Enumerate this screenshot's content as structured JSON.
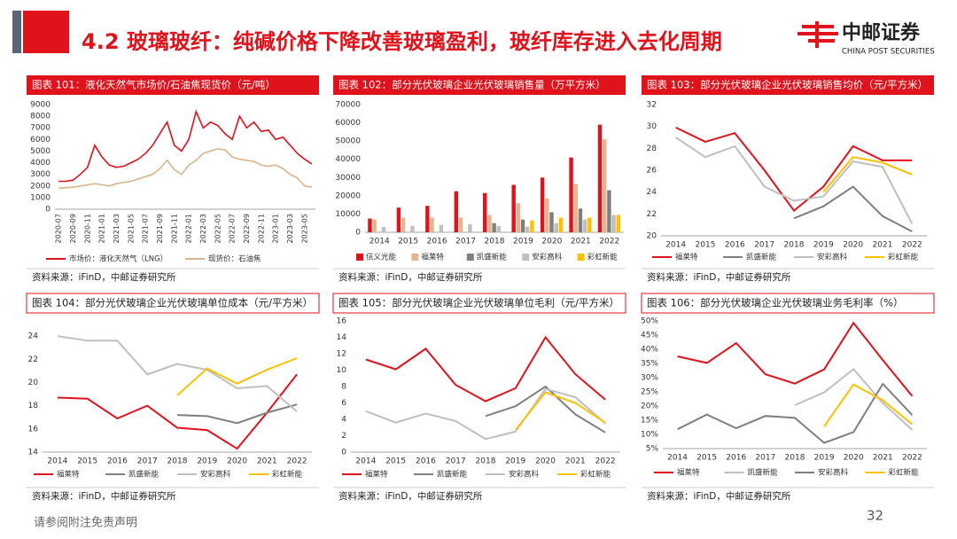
{
  "header": {
    "title": "4.2 玻璃玻纤：纯碱价格下降改善玻璃盈利，玻纤库存进入去化周期",
    "logo": "中邮证券",
    "logo_en": "CHINA POST SECURITIES"
  },
  "footer": {
    "disclaimer": "请参阅附注免责声明",
    "page": "32"
  },
  "chart_data": [
    {
      "type": "line",
      "title": "图表 101：液化天然气市场价/石油焦现货价（元/吨）",
      "source": "资料来源：iFinD，中邮证券研究所",
      "categories": [
        "2020-07",
        null,
        "2020-09",
        null,
        "2020-11",
        null,
        "2021-01",
        null,
        "2021-03",
        null,
        "2021-05",
        null,
        "2021-07",
        null,
        "2021-09",
        null,
        "2021-11",
        null,
        "2022-01",
        null,
        "2022-03",
        null,
        "2022-05",
        null,
        "2022-07",
        null,
        "2022-09",
        null,
        "2022-11",
        null,
        "2023-01",
        null,
        "2023-03",
        null,
        "2023-05",
        null
      ],
      "series": [
        {
          "name": "市场价：液化天然气（LNG）",
          "color": "#e0121b",
          "values": [
            2400,
            2400,
            2500,
            3000,
            3600,
            5500,
            4500,
            3800,
            3600,
            3700,
            4000,
            4300,
            4800,
            5500,
            6500,
            7500,
            5500,
            5000,
            6000,
            8400,
            7000,
            7500,
            7200,
            6500,
            6000,
            8000,
            7000,
            7500,
            6700,
            6800,
            6000,
            6200,
            5500,
            4800,
            4300,
            3900
          ]
        },
        {
          "name": "现货价：石油焦",
          "color": "#d9b48c",
          "values": [
            1800,
            1850,
            1900,
            2000,
            2100,
            2200,
            2100,
            2000,
            2200,
            2300,
            2400,
            2600,
            2800,
            3000,
            3500,
            4200,
            3400,
            3000,
            3800,
            4200,
            4800,
            5000,
            5200,
            5100,
            4500,
            4300,
            4200,
            4100,
            3800,
            3700,
            3800,
            3500,
            3000,
            2700,
            2000,
            1900
          ]
        }
      ],
      "ylim": [
        0,
        9000
      ],
      "yticks": [
        0,
        1000,
        2000,
        3000,
        4000,
        5000,
        6000,
        7000,
        8000,
        9000
      ],
      "grid": false
    },
    {
      "type": "bar",
      "title": "图表 102：部分光伏玻璃企业光伏玻璃销售量（万平方米）",
      "source": "资料来源：iFinD，中邮证券研究所",
      "categories": [
        "2014",
        "2015",
        "2016",
        "2017",
        "2018",
        "2019",
        "2020",
        "2021",
        "2022"
      ],
      "series": [
        {
          "name": "信义光能",
          "color": "#e0121b",
          "values": [
            7500,
            13500,
            14500,
            22500,
            21500,
            26000,
            30000,
            41000,
            59000
          ]
        },
        {
          "name": "福莱特",
          "color": "#e8b48f",
          "values": [
            7000,
            8000,
            8000,
            8000,
            9500,
            16000,
            18500,
            26500,
            51000
          ]
        },
        {
          "name": "凯盛新能",
          "color": "#7f7f7f",
          "values": [
            null,
            null,
            null,
            null,
            5000,
            7000,
            11000,
            13000,
            23000
          ]
        },
        {
          "name": "安彩高科",
          "color": "#bfbfbf",
          "values": [
            3000,
            3500,
            4000,
            4500,
            3500,
            3000,
            5000,
            7000,
            9500
          ]
        },
        {
          "name": "彩虹新能",
          "color": "#ffc000",
          "values": [
            null,
            null,
            null,
            null,
            null,
            6500,
            8000,
            8000,
            9500
          ]
        }
      ],
      "ylim": [
        0,
        70000
      ],
      "yticks": [
        0,
        10000,
        20000,
        30000,
        40000,
        50000,
        60000,
        70000
      ],
      "grid": false
    },
    {
      "type": "line",
      "title": "图表 103：部分光伏玻璃企业光伏玻璃销售均价（元/平方米）",
      "source": "资料来源：iFinD，中邮证券研究所",
      "categories": [
        "2014",
        "2015",
        "2016",
        "2017",
        "2018",
        "2019",
        "2020",
        "2021",
        "2022"
      ],
      "series": [
        {
          "name": "福莱特",
          "color": "#e0121b",
          "values": [
            29.9,
            28.6,
            29.4,
            26.0,
            22.3,
            24.5,
            28.2,
            26.9,
            26.9
          ]
        },
        {
          "name": "凯盛新能",
          "color": "#7f7f7f",
          "values": [
            null,
            null,
            null,
            null,
            21.6,
            22.7,
            24.5,
            21.8,
            20.4
          ]
        },
        {
          "name": "安彩高科",
          "color": "#bfbfbf",
          "values": [
            29.0,
            27.2,
            28.2,
            24.5,
            23.2,
            23.6,
            26.8,
            26.3,
            21.1
          ]
        },
        {
          "name": "彩虹新能",
          "color": "#ffc000",
          "values": [
            null,
            null,
            null,
            null,
            null,
            24.0,
            27.2,
            26.7,
            25.6
          ]
        }
      ],
      "ylim": [
        20,
        32
      ],
      "yticks": [
        20,
        22,
        24,
        26,
        28,
        30,
        32
      ],
      "grid": false
    },
    {
      "type": "line",
      "title": "图表 104：部分光伏玻璃企业光伏玻璃单位成本（元/平方米）",
      "source": "资料来源：iFinD，中邮证券研究所",
      "categories": [
        "2014",
        "2015",
        "2016",
        "2017",
        "2018",
        "2019",
        "2020",
        "2021",
        "2022"
      ],
      "series": [
        {
          "name": "福莱特",
          "color": "#e0121b",
          "values": [
            18.7,
            18.6,
            16.9,
            18.0,
            16.1,
            15.9,
            14.3,
            17.4,
            20.7
          ]
        },
        {
          "name": "凯盛新能",
          "color": "#7f7f7f",
          "values": [
            null,
            null,
            null,
            null,
            17.2,
            17.1,
            16.5,
            17.4,
            18.1
          ]
        },
        {
          "name": "安彩高科",
          "color": "#bfbfbf",
          "values": [
            24.0,
            23.6,
            23.6,
            20.7,
            21.6,
            21.1,
            19.5,
            19.7,
            17.5
          ]
        },
        {
          "name": "彩虹新能",
          "color": "#ffc000",
          "values": [
            null,
            null,
            null,
            null,
            18.9,
            21.2,
            19.9,
            21.1,
            22.1
          ]
        }
      ],
      "ylim": [
        14,
        25
      ],
      "yticks": [
        14,
        16,
        18,
        20,
        22,
        24
      ],
      "grid": false
    },
    {
      "type": "line",
      "title": "图表 105：部分光伏玻璃企业光伏玻璃单位毛利（元/平方米）",
      "source": "资料来源：iFinD，中邮证券研究所",
      "categories": [
        "2014",
        "2015",
        "2016",
        "2017",
        "2018",
        "2019",
        "2020",
        "2021",
        "2022"
      ],
      "series": [
        {
          "name": "福莱特",
          "color": "#e0121b",
          "values": [
            11.3,
            10.1,
            12.6,
            8.2,
            6.2,
            7.8,
            14.0,
            9.5,
            6.4
          ]
        },
        {
          "name": "凯盛新能",
          "color": "#7f7f7f",
          "values": [
            null,
            null,
            null,
            null,
            4.4,
            5.6,
            8.0,
            4.6,
            2.4
          ]
        },
        {
          "name": "安彩高科",
          "color": "#bfbfbf",
          "values": [
            5.0,
            3.6,
            4.7,
            3.8,
            1.6,
            2.5,
            7.7,
            6.7,
            3.5
          ]
        },
        {
          "name": "彩虹新能",
          "color": "#ffc000",
          "values": [
            null,
            null,
            null,
            null,
            null,
            2.7,
            7.3,
            6.0,
            3.6
          ]
        }
      ],
      "ylim": [
        0,
        16
      ],
      "yticks": [
        0,
        2,
        4,
        6,
        8,
        10,
        12,
        14,
        16
      ],
      "grid": false
    },
    {
      "type": "line",
      "title": "图表 106：部分光伏玻璃企业光伏玻璃业务毛利率（%）",
      "source": "资料来源：iFinD，中邮证券研究所",
      "categories": [
        "2014",
        "2015",
        "2016",
        "2017",
        "2018",
        "2019",
        "2020",
        "2021",
        "2022"
      ],
      "series": [
        {
          "name": "福莱特",
          "color": "#e0121b",
          "values": [
            37.5,
            35.2,
            42.2,
            31.2,
            27.9,
            32.9,
            49.3,
            36.2,
            23.5
          ]
        },
        {
          "name": "凯盛新能",
          "color": "#bfbfbf",
          "values": [
            null,
            null,
            null,
            null,
            20.3,
            24.8,
            33.0,
            21.0,
            11.6
          ]
        },
        {
          "name": "安彩高科",
          "color": "#7f7f7f",
          "values": [
            11.8,
            17.0,
            12.2,
            16.5,
            15.8,
            7.0,
            10.8,
            27.8,
            16.8
          ]
        },
        {
          "name": "彩虹新能",
          "color": "#ffc000",
          "values": [
            null,
            null,
            null,
            null,
            null,
            12.8,
            27.6,
            22.0,
            13.6
          ]
        }
      ],
      "ylim": [
        5,
        50
      ],
      "yticks": [
        {
          "value": 5,
          "label": "5%"
        },
        {
          "value": 10,
          "label": "10%"
        },
        {
          "value": 15,
          "label": "15%"
        },
        {
          "value": 20,
          "label": "20%"
        },
        {
          "value": 25,
          "label": "25%"
        },
        {
          "value": 30,
          "label": "30%"
        },
        {
          "value": 35,
          "label": "35%"
        },
        {
          "value": 40,
          "label": "40%"
        },
        {
          "value": 45,
          "label": "45%"
        },
        {
          "value": 50,
          "label": "50%"
        }
      ],
      "grid": false
    }
  ]
}
